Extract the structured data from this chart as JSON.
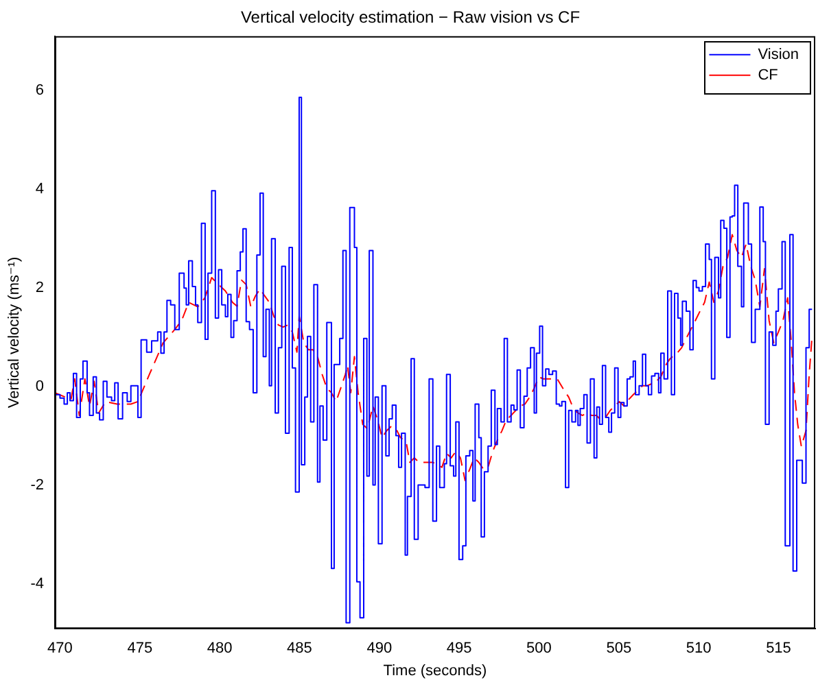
{
  "chart_data": {
    "type": "line",
    "title": "Vertical velocity estimation − Raw vision vs CF",
    "xlabel": "Time (seconds)",
    "ylabel": "Vertical velocity (ms⁻¹)",
    "xlim": [
      469.68,
      517.3
    ],
    "ylim": [
      -4.9,
      7.1
    ],
    "xticks": [
      470,
      475,
      480,
      485,
      490,
      495,
      500,
      505,
      510,
      515
    ],
    "yticks": [
      -4,
      -2,
      0,
      2,
      4,
      6
    ],
    "legend": "top right",
    "series": [
      {
        "name": "Vision",
        "type": "step",
        "color": "#0000ff",
        "line_style": "solid",
        "x": [
          469.68,
          470.0,
          470.26,
          470.46,
          470.63,
          470.84,
          471.04,
          471.27,
          471.44,
          471.7,
          471.85,
          472.08,
          472.28,
          472.48,
          472.71,
          472.94,
          473.23,
          473.43,
          473.64,
          473.92,
          474.21,
          474.44,
          474.88,
          475.08,
          475.43,
          475.74,
          476.12,
          476.32,
          476.52,
          476.7,
          476.93,
          477.19,
          477.47,
          477.77,
          477.91,
          478.06,
          478.29,
          478.49,
          478.63,
          478.86,
          479.09,
          479.27,
          479.5,
          479.73,
          479.93,
          480.13,
          480.36,
          480.51,
          480.71,
          480.88,
          481.09,
          481.29,
          481.46,
          481.66,
          481.87,
          482.1,
          482.33,
          482.53,
          482.73,
          482.9,
          483.11,
          483.25,
          483.48,
          483.68,
          483.89,
          484.12,
          484.35,
          484.55,
          484.75,
          484.98,
          485.12,
          485.33,
          485.5,
          485.7,
          485.9,
          486.13,
          486.28,
          486.48,
          486.71,
          487.0,
          487.17,
          487.52,
          487.72,
          487.92,
          488.15,
          488.44,
          488.59,
          488.79,
          489.02,
          489.22,
          489.37,
          489.6,
          489.74,
          489.94,
          490.17,
          490.41,
          490.61,
          490.81,
          491.04,
          491.21,
          491.39,
          491.62,
          491.76,
          491.99,
          492.19,
          492.43,
          492.86,
          493.12,
          493.35,
          493.58,
          493.78,
          494.07,
          494.21,
          494.44,
          494.65,
          494.79,
          494.99,
          495.22,
          495.42,
          495.66,
          495.86,
          496.0,
          496.23,
          496.38,
          496.58,
          496.81,
          497.01,
          497.24,
          497.39,
          497.62,
          497.82,
          498.02,
          498.25,
          498.43,
          498.63,
          498.83,
          499.06,
          499.26,
          499.47,
          499.7,
          499.84,
          500.04,
          500.22,
          500.42,
          500.62,
          500.85,
          501.08,
          501.28,
          501.43,
          501.66,
          501.86,
          502.06,
          502.29,
          502.44,
          502.58,
          502.81,
          503.01,
          503.22,
          503.45,
          503.62,
          503.79,
          503.97,
          504.17,
          504.37,
          504.54,
          504.74,
          504.95,
          505.12,
          505.32,
          505.52,
          505.7,
          505.9,
          506.04,
          506.27,
          506.48,
          506.68,
          506.85,
          507.05,
          507.26,
          507.49,
          507.63,
          507.83,
          508.06,
          508.29,
          508.49,
          508.7,
          508.87,
          508.98,
          509.22,
          509.45,
          509.65,
          509.85,
          510.02,
          510.23,
          510.43,
          510.66,
          510.8,
          511.01,
          511.24,
          511.38,
          511.58,
          511.76,
          511.96,
          512.1,
          512.25,
          512.45,
          512.68,
          512.82,
          513.11,
          513.31,
          513.54,
          513.83,
          514.04,
          514.18,
          514.41,
          514.64,
          514.84,
          514.99,
          515.22,
          515.42,
          515.71,
          515.91,
          516.14,
          516.49,
          516.72,
          516.92,
          517.1
        ],
        "values": [
          -0.16,
          -0.23,
          -0.35,
          -0.12,
          -0.28,
          0.27,
          -0.62,
          0.16,
          0.52,
          -0.12,
          -0.58,
          0.2,
          -0.53,
          -0.67,
          0.11,
          -0.21,
          -0.28,
          0.08,
          -0.65,
          -0.12,
          -0.3,
          0.02,
          -0.62,
          0.95,
          0.7,
          0.93,
          1.11,
          0.68,
          1.11,
          1.75,
          1.66,
          1.16,
          2.3,
          2.0,
          1.66,
          2.55,
          2.03,
          1.66,
          1.3,
          3.31,
          0.96,
          2.3,
          3.97,
          1.39,
          2.37,
          1.66,
          1.42,
          1.87,
          1.0,
          1.34,
          2.35,
          2.73,
          3.2,
          1.32,
          1.16,
          -0.12,
          2.67,
          3.92,
          0.61,
          1.57,
          0.02,
          3.0,
          -0.53,
          0.79,
          2.44,
          -0.94,
          2.82,
          0.38,
          -2.13,
          5.86,
          -1.58,
          -0.21,
          1.02,
          -0.71,
          2.07,
          -1.93,
          -0.39,
          -1.08,
          1.3,
          -3.68,
          0.45,
          0.98,
          2.76,
          -4.78,
          3.63,
          2.82,
          -3.95,
          -4.68,
          0.98,
          -1.81,
          2.76,
          -1.99,
          -0.21,
          -3.18,
          0.02,
          -1.4,
          -0.65,
          -0.37,
          -0.99,
          -1.63,
          -0.94,
          -3.41,
          -2.22,
          0.57,
          -3.09,
          -1.99,
          -2.04,
          0.16,
          -2.72,
          -1.2,
          -2.04,
          -1.56,
          0.25,
          -1.6,
          -1.81,
          -0.71,
          -3.5,
          -3.22,
          -1.4,
          -1.29,
          -2.31,
          -0.35,
          -1.03,
          -3.04,
          -1.72,
          -1.2,
          -0.07,
          -1.17,
          -0.44,
          -0.71,
          0.98,
          -0.71,
          -0.37,
          -0.47,
          0.34,
          -0.83,
          -0.19,
          0.38,
          0.79,
          -0.53,
          0.68,
          1.23,
          0.02,
          0.36,
          0.25,
          0.32,
          -0.35,
          -0.39,
          -0.3,
          -2.04,
          -0.48,
          -0.71,
          -0.48,
          -0.78,
          -0.44,
          -0.16,
          -1.14,
          0.16,
          -1.44,
          -0.41,
          -0.76,
          0.43,
          -0.62,
          -0.92,
          -0.53,
          0.38,
          -0.62,
          -0.32,
          -0.39,
          0.16,
          0.2,
          0.52,
          -0.16,
          0.02,
          0.66,
          0.02,
          -0.16,
          0.22,
          0.27,
          -0.12,
          0.68,
          0.16,
          1.94,
          -0.16,
          1.89,
          1.39,
          0.84,
          1.73,
          1.53,
          0.75,
          2.15,
          2.01,
          1.94,
          2.03,
          2.89,
          2.58,
          0.16,
          2.62,
          1.8,
          3.37,
          3.21,
          1.0,
          3.44,
          3.46,
          4.08,
          2.44,
          1.62,
          3.72,
          2.89,
          0.9,
          1.57,
          3.64,
          2.94,
          -0.76,
          1.11,
          0.84,
          1.53,
          1.98,
          2.94,
          -3.22,
          3.08,
          -3.73,
          -1.49,
          -1.95,
          0.79,
          1.57,
          1.57
        ]
      },
      {
        "name": "CF",
        "type": "line",
        "color": "#ff0000",
        "line_style": "dashed",
        "x": [
          469.68,
          470.69,
          470.92,
          471.21,
          471.56,
          471.85,
          472.14,
          472.42,
          472.86,
          473.58,
          474.44,
          474.88,
          475.6,
          476.46,
          477.19,
          477.62,
          478.06,
          478.63,
          479.07,
          479.5,
          479.93,
          480.36,
          480.8,
          481.09,
          481.37,
          481.66,
          481.95,
          482.24,
          482.53,
          482.82,
          483.11,
          483.39,
          483.68,
          483.97,
          484.26,
          484.55,
          484.84,
          484.98,
          485.27,
          485.56,
          485.85,
          486.13,
          486.42,
          486.71,
          487.0,
          487.29,
          487.58,
          487.87,
          488.01,
          488.21,
          488.44,
          488.67,
          488.96,
          489.25,
          489.6,
          489.89,
          490.17,
          490.46,
          490.75,
          491.04,
          491.33,
          491.68,
          491.91,
          492.19,
          492.48,
          492.92,
          493.35,
          493.64,
          493.92,
          494.21,
          494.5,
          494.79,
          495.08,
          495.37,
          495.66,
          495.94,
          496.23,
          496.52,
          496.81,
          497.1,
          497.39,
          497.68,
          497.96,
          498.25,
          498.54,
          498.83,
          499.12,
          499.41,
          499.7,
          499.99,
          500.27,
          500.56,
          501.14,
          501.57,
          501.86,
          502.15,
          502.44,
          502.72,
          503.01,
          503.3,
          503.59,
          503.88,
          504.17,
          504.46,
          504.74,
          505.03,
          505.32,
          505.61,
          505.9,
          506.19,
          506.48,
          506.76,
          507.05,
          507.34,
          507.63,
          507.92,
          508.21,
          508.64,
          508.93,
          509.22,
          509.5,
          509.79,
          510.08,
          510.37,
          510.66,
          510.95,
          511.24,
          511.52,
          511.81,
          512.1,
          512.39,
          512.68,
          512.97,
          513.26,
          513.54,
          513.83,
          514.12,
          514.41,
          514.7,
          514.99,
          515.28,
          515.57,
          515.8,
          516.0,
          516.2,
          516.43,
          516.72,
          516.92,
          517.09
        ],
        "values": [
          -0.12,
          -0.26,
          0.16,
          -0.58,
          0.16,
          -0.39,
          0.11,
          -0.53,
          -0.3,
          -0.35,
          -0.35,
          -0.3,
          0.25,
          0.89,
          1.16,
          1.34,
          1.71,
          1.62,
          1.8,
          2.21,
          2.07,
          1.94,
          1.71,
          1.63,
          2.16,
          2.07,
          1.62,
          1.84,
          1.98,
          1.84,
          1.71,
          1.43,
          1.25,
          1.21,
          1.25,
          1.11,
          0.7,
          1.43,
          0.89,
          0.75,
          0.75,
          0.61,
          0.25,
          -0.03,
          -0.12,
          -0.3,
          -0.03,
          0.25,
          0.43,
          -0.12,
          0.61,
          -0.12,
          -0.76,
          -0.85,
          -0.39,
          -0.67,
          -1.03,
          -0.89,
          -0.8,
          -0.85,
          -1.03,
          -1.12,
          -1.53,
          -1.44,
          -1.53,
          -1.53,
          -1.53,
          -1.58,
          -1.63,
          -1.35,
          -1.44,
          -1.31,
          -1.44,
          -1.9,
          -1.67,
          -1.44,
          -1.53,
          -1.67,
          -1.63,
          -1.31,
          -1.08,
          -0.89,
          -0.67,
          -0.58,
          -0.48,
          -0.39,
          -0.35,
          -0.21,
          -0.03,
          0.2,
          0.16,
          0.16,
          0.16,
          -0.07,
          -0.21,
          -0.44,
          -0.53,
          -0.58,
          -0.53,
          -0.58,
          -0.58,
          -0.67,
          -0.62,
          -0.48,
          -0.39,
          -0.3,
          -0.39,
          -0.26,
          -0.16,
          -0.07,
          0.02,
          0.02,
          0.06,
          0.11,
          0.2,
          0.43,
          0.57,
          0.68,
          0.79,
          0.98,
          1.16,
          1.34,
          1.53,
          1.71,
          2.12,
          1.71,
          1.94,
          2.44,
          2.62,
          3.08,
          2.76,
          2.62,
          2.89,
          2.44,
          2.16,
          1.62,
          2.39,
          1.34,
          0.89,
          1.11,
          1.34,
          1.8,
          0.89,
          -0.12,
          -0.76,
          -1.21,
          -0.89,
          0.25,
          0.98
        ]
      }
    ]
  }
}
